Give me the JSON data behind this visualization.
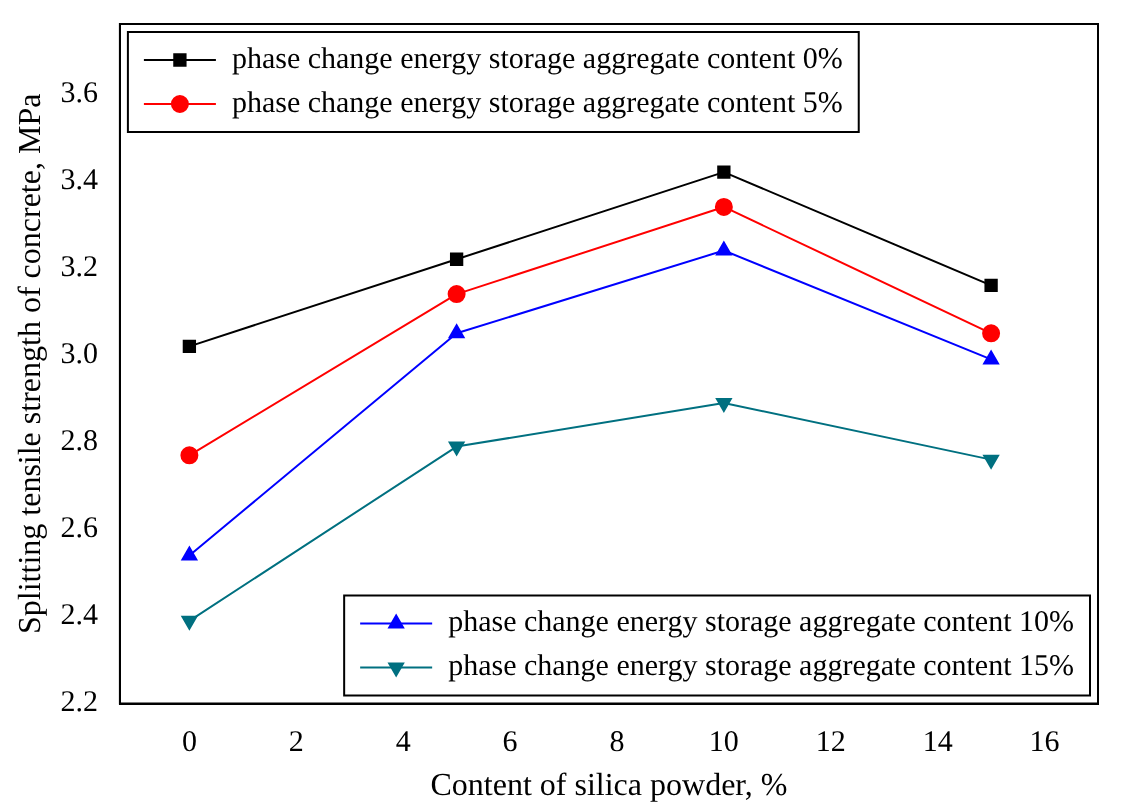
{
  "chart_data": {
    "type": "line",
    "xlabel": "Content of silica powder, %",
    "ylabel": "Splitting tensile strength of concrete, MPa",
    "x": [
      0,
      5,
      10,
      15
    ],
    "series": [
      {
        "name": "phase change energy storage aggregate content 0%",
        "color": "#000000",
        "marker": "square",
        "values": [
          3.02,
          3.22,
          3.42,
          3.16
        ]
      },
      {
        "name": "phase change energy storage aggregate content 5%",
        "color": "#ff0000",
        "marker": "circle",
        "values": [
          2.77,
          3.14,
          3.34,
          3.05
        ]
      },
      {
        "name": "phase change energy storage aggregate content 10%",
        "color": "#0000ff",
        "marker": "triangle",
        "values": [
          2.54,
          3.05,
          3.24,
          2.99
        ]
      },
      {
        "name": "phase change energy storage aggregate content 15%",
        "color": "#007080",
        "marker": "triangle-down",
        "values": [
          2.39,
          2.79,
          2.89,
          2.76
        ]
      }
    ],
    "xlim": [
      -1.3,
      17
    ],
    "xticks": [
      0,
      2,
      4,
      6,
      8,
      10,
      12,
      14,
      16
    ],
    "ylim": [
      2.2,
      3.76
    ],
    "yticks": [
      2.2,
      2.4,
      2.6,
      2.8,
      {
        "value": 3,
        "label": "3.0"
      },
      3.2,
      3.4,
      3.6
    ],
    "grid": false,
    "legend": "left",
    "line_style": "solid"
  }
}
